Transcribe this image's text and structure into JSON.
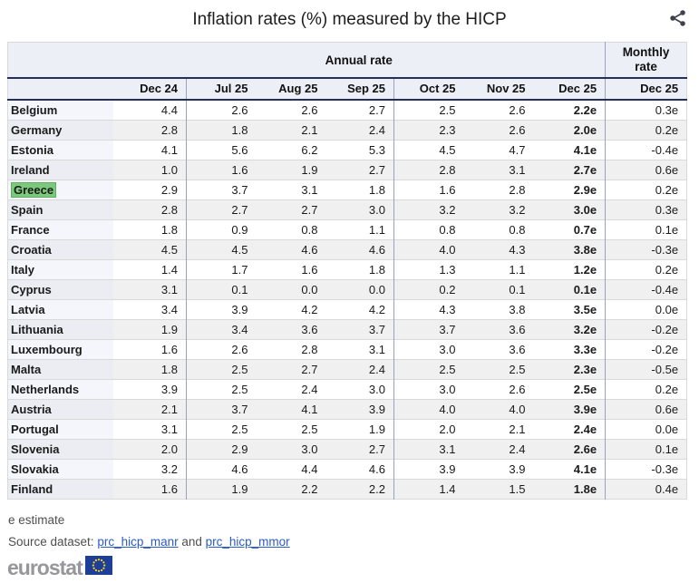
{
  "title": "Inflation rates (%) measured by the HICP",
  "table": {
    "annual_header": "Annual rate",
    "monthly_header": "Monthly rate",
    "columns": [
      "Dec 24",
      "Jul 25",
      "Aug 25",
      "Sep 25",
      "Oct 25",
      "Nov 25",
      "Dec 25"
    ],
    "monthly_column": "Dec 25",
    "rows": [
      {
        "country": "Belgium",
        "highlight": false,
        "values": [
          "4.4",
          "2.6",
          "2.6",
          "2.7",
          "2.5",
          "2.6",
          "2.2e"
        ],
        "monthly": "0.3e"
      },
      {
        "country": "Germany",
        "highlight": false,
        "values": [
          "2.8",
          "1.8",
          "2.1",
          "2.4",
          "2.3",
          "2.6",
          "2.0e"
        ],
        "monthly": "0.2e"
      },
      {
        "country": "Estonia",
        "highlight": false,
        "values": [
          "4.1",
          "5.6",
          "6.2",
          "5.3",
          "4.5",
          "4.7",
          "4.1e"
        ],
        "monthly": "-0.4e"
      },
      {
        "country": "Ireland",
        "highlight": false,
        "values": [
          "1.0",
          "1.6",
          "1.9",
          "2.7",
          "2.8",
          "3.1",
          "2.7e"
        ],
        "monthly": "0.6e"
      },
      {
        "country": "Greece",
        "highlight": true,
        "values": [
          "2.9",
          "3.7",
          "3.1",
          "1.8",
          "1.6",
          "2.8",
          "2.9e"
        ],
        "monthly": "0.2e"
      },
      {
        "country": "Spain",
        "highlight": false,
        "values": [
          "2.8",
          "2.7",
          "2.7",
          "3.0",
          "3.2",
          "3.2",
          "3.0e"
        ],
        "monthly": "0.3e"
      },
      {
        "country": "France",
        "highlight": false,
        "values": [
          "1.8",
          "0.9",
          "0.8",
          "1.1",
          "0.8",
          "0.8",
          "0.7e"
        ],
        "monthly": "0.1e"
      },
      {
        "country": "Croatia",
        "highlight": false,
        "values": [
          "4.5",
          "4.5",
          "4.6",
          "4.6",
          "4.0",
          "4.3",
          "3.8e"
        ],
        "monthly": "-0.3e"
      },
      {
        "country": "Italy",
        "highlight": false,
        "values": [
          "1.4",
          "1.7",
          "1.6",
          "1.8",
          "1.3",
          "1.1",
          "1.2e"
        ],
        "monthly": "0.2e"
      },
      {
        "country": "Cyprus",
        "highlight": false,
        "values": [
          "3.1",
          "0.1",
          "0.0",
          "0.0",
          "0.2",
          "0.1",
          "0.1e"
        ],
        "monthly": "-0.4e"
      },
      {
        "country": "Latvia",
        "highlight": false,
        "values": [
          "3.4",
          "3.9",
          "4.2",
          "4.2",
          "4.3",
          "3.8",
          "3.5e"
        ],
        "monthly": "0.0e"
      },
      {
        "country": "Lithuania",
        "highlight": false,
        "values": [
          "1.9",
          "3.4",
          "3.6",
          "3.7",
          "3.7",
          "3.6",
          "3.2e"
        ],
        "monthly": "-0.2e"
      },
      {
        "country": "Luxembourg",
        "highlight": false,
        "values": [
          "1.6",
          "2.6",
          "2.8",
          "3.1",
          "3.0",
          "3.6",
          "3.3e"
        ],
        "monthly": "-0.2e"
      },
      {
        "country": "Malta",
        "highlight": false,
        "values": [
          "1.8",
          "2.5",
          "2.7",
          "2.4",
          "2.5",
          "2.5",
          "2.3e"
        ],
        "monthly": "-0.5e"
      },
      {
        "country": "Netherlands",
        "highlight": false,
        "values": [
          "3.9",
          "2.5",
          "2.4",
          "3.0",
          "3.0",
          "2.6",
          "2.5e"
        ],
        "monthly": "0.2e"
      },
      {
        "country": "Austria",
        "highlight": false,
        "values": [
          "2.1",
          "3.7",
          "4.1",
          "3.9",
          "4.0",
          "4.0",
          "3.9e"
        ],
        "monthly": "0.6e"
      },
      {
        "country": "Portugal",
        "highlight": false,
        "values": [
          "3.1",
          "2.5",
          "2.5",
          "1.9",
          "2.0",
          "2.1",
          "2.4e"
        ],
        "monthly": "0.0e"
      },
      {
        "country": "Slovenia",
        "highlight": false,
        "values": [
          "2.0",
          "2.9",
          "3.0",
          "2.7",
          "3.1",
          "2.4",
          "2.6e"
        ],
        "monthly": "0.1e"
      },
      {
        "country": "Slovakia",
        "highlight": false,
        "values": [
          "3.2",
          "4.6",
          "4.4",
          "4.6",
          "3.9",
          "3.9",
          "4.1e"
        ],
        "monthly": "-0.3e"
      },
      {
        "country": "Finland",
        "highlight": false,
        "values": [
          "1.6",
          "1.9",
          "2.2",
          "2.2",
          "1.4",
          "1.5",
          "1.8e"
        ],
        "monthly": "0.4e"
      }
    ]
  },
  "footnote": "e estimate",
  "source": {
    "prefix": "Source dataset: ",
    "link1": "prc_hicp_manr",
    "middle": " and ",
    "link2": "prc_hicp_mmor"
  },
  "logo": {
    "text": "eurostat"
  },
  "colors": {
    "header_bg": "#edeff7",
    "header_border_navy": "#252f5a",
    "row_stripe_gray": "#f0f0f0",
    "country_col_tint": "#f4f6fb",
    "highlight_green": "#7cc87c",
    "link_blue": "#2b5bc4",
    "flag_blue": "#1e3f97",
    "star_yellow": "#ffd617"
  },
  "chart_data": {
    "type": "table",
    "title": "Inflation rates (%) measured by the HICP",
    "column_groups": [
      "Annual rate",
      "Monthly rate"
    ],
    "columns": [
      "Dec 24",
      "Jul 25",
      "Aug 25",
      "Sep 25",
      "Oct 25",
      "Nov 25",
      "Dec 25",
      "Dec 25 (monthly)"
    ],
    "rows": [
      [
        "Belgium",
        4.4,
        2.6,
        2.6,
        2.7,
        2.5,
        2.6,
        2.2,
        0.3
      ],
      [
        "Germany",
        2.8,
        1.8,
        2.1,
        2.4,
        2.3,
        2.6,
        2.0,
        0.2
      ],
      [
        "Estonia",
        4.1,
        5.6,
        6.2,
        5.3,
        4.5,
        4.7,
        4.1,
        -0.4
      ],
      [
        "Ireland",
        1.0,
        1.6,
        1.9,
        2.7,
        2.8,
        3.1,
        2.7,
        0.6
      ],
      [
        "Greece",
        2.9,
        3.7,
        3.1,
        1.8,
        1.6,
        2.8,
        2.9,
        0.2
      ],
      [
        "Spain",
        2.8,
        2.7,
        2.7,
        3.0,
        3.2,
        3.2,
        3.0,
        0.3
      ],
      [
        "France",
        1.8,
        0.9,
        0.8,
        1.1,
        0.8,
        0.8,
        0.7,
        0.1
      ],
      [
        "Croatia",
        4.5,
        4.5,
        4.6,
        4.6,
        4.0,
        4.3,
        3.8,
        -0.3
      ],
      [
        "Italy",
        1.4,
        1.7,
        1.6,
        1.8,
        1.3,
        1.1,
        1.2,
        0.2
      ],
      [
        "Cyprus",
        3.1,
        0.1,
        0.0,
        0.0,
        0.2,
        0.1,
        0.1,
        -0.4
      ],
      [
        "Latvia",
        3.4,
        3.9,
        4.2,
        4.2,
        4.3,
        3.8,
        3.5,
        0.0
      ],
      [
        "Lithuania",
        1.9,
        3.4,
        3.6,
        3.7,
        3.7,
        3.6,
        3.2,
        -0.2
      ],
      [
        "Luxembourg",
        1.6,
        2.6,
        2.8,
        3.1,
        3.0,
        3.6,
        3.3,
        -0.2
      ],
      [
        "Malta",
        1.8,
        2.5,
        2.7,
        2.4,
        2.5,
        2.5,
        2.3,
        -0.5
      ],
      [
        "Netherlands",
        3.9,
        2.5,
        2.4,
        3.0,
        3.0,
        2.6,
        2.5,
        0.2
      ],
      [
        "Austria",
        2.1,
        3.7,
        4.1,
        3.9,
        4.0,
        4.0,
        3.9,
        0.6
      ],
      [
        "Portugal",
        3.1,
        2.5,
        2.5,
        1.9,
        2.0,
        2.1,
        2.4,
        0.0
      ],
      [
        "Slovenia",
        2.0,
        2.9,
        3.0,
        2.7,
        3.1,
        2.4,
        2.6,
        0.1
      ],
      [
        "Slovakia",
        3.2,
        4.6,
        4.4,
        4.6,
        3.9,
        3.9,
        4.1,
        -0.3
      ],
      [
        "Finland",
        1.6,
        1.9,
        2.2,
        2.2,
        1.4,
        1.5,
        1.8,
        0.4
      ]
    ],
    "notes": "Values with 'e' suffix are estimates (Dec 25 column and monthly column)."
  }
}
